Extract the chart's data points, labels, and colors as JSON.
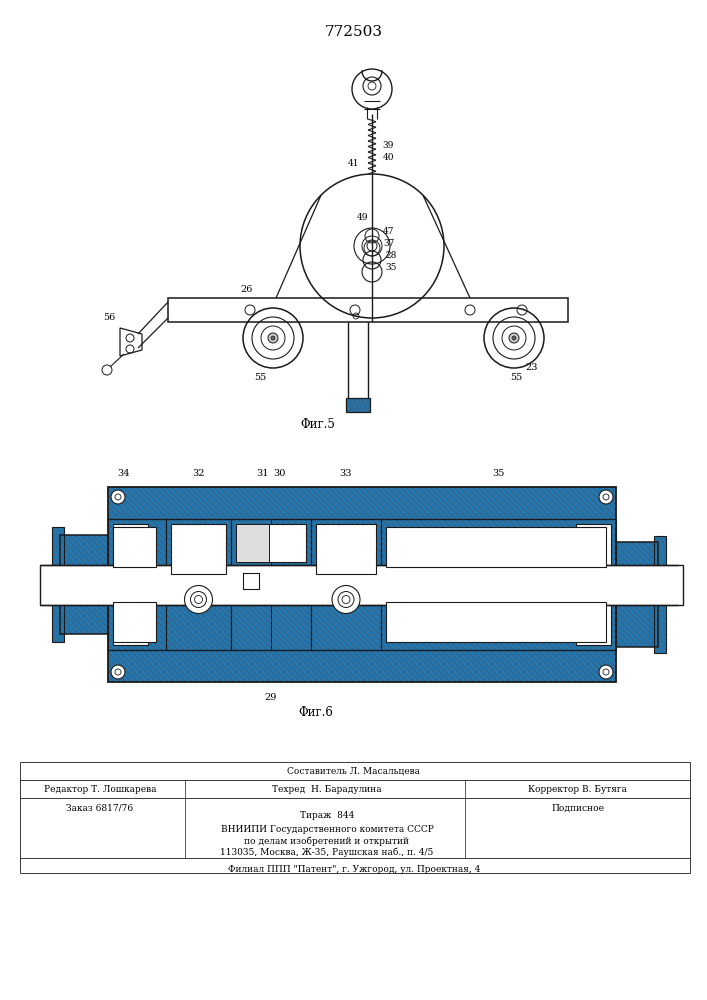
{
  "patent_number": "772503",
  "fig5_caption": "Φиг.5",
  "fig6_caption": "Φиг.6",
  "bg_color": "#ffffff",
  "line_color": "#1a1a1a",
  "hatch_color": "#444444",
  "footer_sestavitel": "Составитель Л. Масальцева",
  "footer_tehred": "Техред  Н. Барадулина",
  "footer_redaktor": "Редактор Т. Лошкарева",
  "footer_korrektor": "Корректор В. Бутяга",
  "footer_zakaz": "Заказ 6817/76",
  "footer_tirazh": "Тираж  844",
  "footer_podpisnoe": "Подписное",
  "footer_vniipи": "ВНИИПИ Государственного комитета СССР",
  "footer_dela": "по делам изобретений и открытий",
  "footer_addr": "113035, Москва, Ж-35, Раушская наб., п. 4/5",
  "footer_filial": "Филиал ППП \"Патент\", г. Ужгород, ул. Проектная, 4"
}
